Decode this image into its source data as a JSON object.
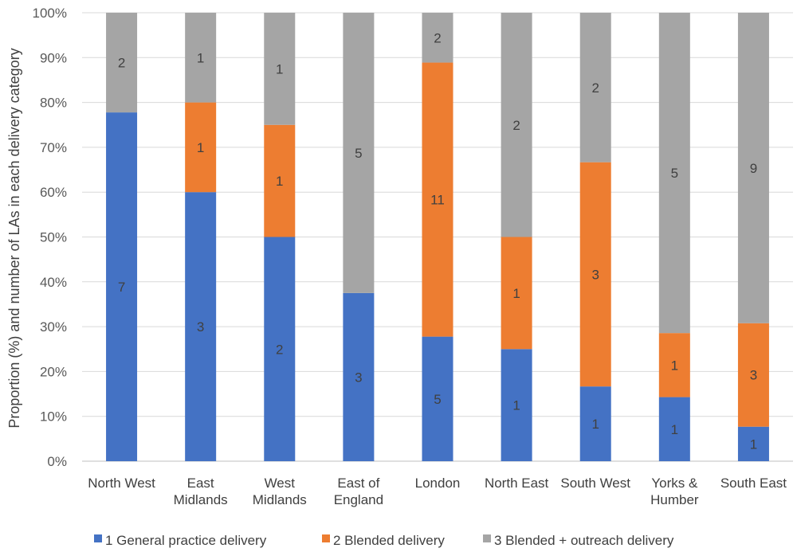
{
  "chart_data": {
    "type": "bar",
    "stacked": true,
    "percent_stacked": true,
    "ylabel": "Proportion (%) and number of LAs in each delivery category",
    "xlabel": "",
    "ylim": [
      0,
      100
    ],
    "yticks": [
      "0%",
      "10%",
      "20%",
      "30%",
      "40%",
      "50%",
      "60%",
      "70%",
      "80%",
      "90%",
      "100%"
    ],
    "categories": [
      [
        "North West"
      ],
      [
        "East",
        "Midlands"
      ],
      [
        "West",
        "Midlands"
      ],
      [
        "East of",
        "England"
      ],
      [
        "London"
      ],
      [
        "North East"
      ],
      [
        "South West"
      ],
      [
        "Yorks &",
        "Humber"
      ],
      [
        "South East"
      ]
    ],
    "series": [
      {
        "name": "1 General practice delivery",
        "color": "#4472C4",
        "counts": [
          7,
          3,
          2,
          3,
          5,
          1,
          1,
          1,
          1
        ]
      },
      {
        "name": "2 Blended delivery",
        "color": "#ED7D31",
        "counts": [
          0,
          1,
          1,
          0,
          11,
          1,
          3,
          1,
          3
        ]
      },
      {
        "name": "3 Blended + outreach delivery",
        "color": "#A5A5A5",
        "counts": [
          2,
          1,
          1,
          5,
          2,
          2,
          2,
          5,
          9
        ]
      }
    ],
    "grid": true,
    "legend_position": "bottom"
  }
}
